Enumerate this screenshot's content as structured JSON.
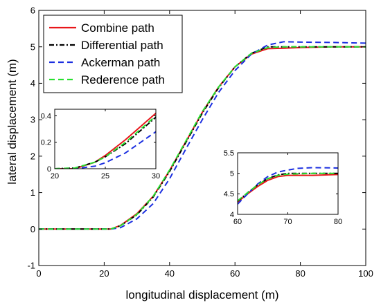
{
  "chart_data": [
    {
      "type": "line",
      "title": "",
      "xlabel": "longitudinal displacement (m)",
      "ylabel": "lateral displacement (m)",
      "xlim": [
        0,
        100
      ],
      "ylim": [
        -1,
        6
      ],
      "x_ticks": [
        "0",
        "20",
        "40",
        "60",
        "80",
        "100"
      ],
      "y_ticks": [
        "-1",
        "0",
        "1",
        "2",
        "3",
        "4",
        "5",
        "6"
      ],
      "grid": false,
      "legend_position": "top-left",
      "series": [
        {
          "name": "Combine path",
          "color": "#e8161a",
          "dash": "solid",
          "points": [
            [
              0,
              0
            ],
            [
              10,
              0
            ],
            [
              20,
              0
            ],
            [
              22,
              0
            ],
            [
              25,
              0.1
            ],
            [
              30,
              0.42
            ],
            [
              35,
              0.9
            ],
            [
              40,
              1.6
            ],
            [
              45,
              2.4
            ],
            [
              50,
              3.2
            ],
            [
              55,
              3.9
            ],
            [
              60,
              4.45
            ],
            [
              65,
              4.8
            ],
            [
              70,
              4.95
            ],
            [
              75,
              4.96
            ],
            [
              80,
              4.98
            ],
            [
              90,
              5.0
            ],
            [
              100,
              5.0
            ]
          ]
        },
        {
          "name": "Differential path",
          "color": "#000000",
          "dash": "dashdot",
          "points": [
            [
              0,
              0
            ],
            [
              10,
              0
            ],
            [
              20,
              0
            ],
            [
              22,
              0
            ],
            [
              25,
              0.09
            ],
            [
              30,
              0.39
            ],
            [
              35,
              0.88
            ],
            [
              40,
              1.58
            ],
            [
              45,
              2.38
            ],
            [
              50,
              3.18
            ],
            [
              55,
              3.88
            ],
            [
              60,
              4.45
            ],
            [
              65,
              4.82
            ],
            [
              70,
              5.0
            ],
            [
              75,
              5.0
            ],
            [
              80,
              5.0
            ],
            [
              90,
              5.0
            ],
            [
              100,
              5.0
            ]
          ]
        },
        {
          "name": "Ackerman path",
          "color": "#1a2ee0",
          "dash": "dashed",
          "points": [
            [
              0,
              0
            ],
            [
              10,
              0
            ],
            [
              20,
              0
            ],
            [
              22,
              0
            ],
            [
              25,
              0.04
            ],
            [
              30,
              0.28
            ],
            [
              35,
              0.7
            ],
            [
              40,
              1.38
            ],
            [
              45,
              2.2
            ],
            [
              50,
              3.0
            ],
            [
              55,
              3.75
            ],
            [
              60,
              4.35
            ],
            [
              65,
              4.8
            ],
            [
              70,
              5.05
            ],
            [
              75,
              5.14
            ],
            [
              80,
              5.13
            ],
            [
              90,
              5.12
            ],
            [
              100,
              5.1
            ]
          ]
        },
        {
          "name": "Rederence path",
          "color": "#27e02f",
          "dash": "dashed",
          "points": [
            [
              0,
              0
            ],
            [
              10,
              0
            ],
            [
              20,
              0
            ],
            [
              22,
              0
            ],
            [
              25,
              0.09
            ],
            [
              30,
              0.4
            ],
            [
              35,
              0.9
            ],
            [
              40,
              1.62
            ],
            [
              45,
              2.42
            ],
            [
              50,
              3.22
            ],
            [
              55,
              3.9
            ],
            [
              60,
              4.45
            ],
            [
              65,
              4.82
            ],
            [
              70,
              4.98
            ],
            [
              75,
              5.0
            ],
            [
              80,
              5.0
            ],
            [
              90,
              5.0
            ],
            [
              100,
              5.0
            ]
          ]
        }
      ]
    },
    {
      "type": "line",
      "title": "",
      "xlim": [
        20,
        30
      ],
      "ylim": [
        0,
        0.45
      ],
      "x_ticks": [
        "20",
        "25",
        "30"
      ],
      "y_ticks": [
        "0",
        "0.2",
        "0.4"
      ],
      "series": [
        {
          "name": "Combine path",
          "points": [
            [
              20,
              0
            ],
            [
              22,
              0
            ],
            [
              24,
              0.05
            ],
            [
              25,
              0.1
            ],
            [
              27,
              0.22
            ],
            [
              30,
              0.42
            ]
          ]
        },
        {
          "name": "Differential path",
          "points": [
            [
              20,
              0
            ],
            [
              22,
              0.005
            ],
            [
              24,
              0.05
            ],
            [
              25,
              0.09
            ],
            [
              27,
              0.19
            ],
            [
              30,
              0.39
            ]
          ]
        },
        {
          "name": "Ackerman path",
          "points": [
            [
              20,
              0
            ],
            [
              22,
              0
            ],
            [
              24,
              0.02
            ],
            [
              25,
              0.045
            ],
            [
              27,
              0.12
            ],
            [
              30,
              0.28
            ]
          ]
        },
        {
          "name": "Rederence path",
          "points": [
            [
              20,
              0
            ],
            [
              22,
              0.005
            ],
            [
              24,
              0.05
            ],
            [
              25,
              0.09
            ],
            [
              27,
              0.2
            ],
            [
              30,
              0.4
            ]
          ]
        }
      ]
    },
    {
      "type": "line",
      "title": "",
      "xlim": [
        60,
        80
      ],
      "ylim": [
        4,
        5.5
      ],
      "x_ticks": [
        "60",
        "70",
        "80"
      ],
      "y_ticks": [
        "4",
        "4.5",
        "5",
        "5.5"
      ],
      "series": [
        {
          "name": "Combine path",
          "points": [
            [
              60,
              4.3
            ],
            [
              62,
              4.5
            ],
            [
              64,
              4.68
            ],
            [
              66,
              4.83
            ],
            [
              68,
              4.92
            ],
            [
              70,
              4.95
            ],
            [
              72,
              4.95
            ],
            [
              75,
              4.95
            ],
            [
              80,
              4.97
            ]
          ]
        },
        {
          "name": "Differential path",
          "points": [
            [
              60,
              4.32
            ],
            [
              62,
              4.53
            ],
            [
              64,
              4.72
            ],
            [
              66,
              4.87
            ],
            [
              68,
              4.96
            ],
            [
              70,
              5.0
            ],
            [
              75,
              5.0
            ],
            [
              80,
              5.0
            ]
          ]
        },
        {
          "name": "Ackerman path",
          "points": [
            [
              60,
              4.25
            ],
            [
              62,
              4.5
            ],
            [
              64,
              4.74
            ],
            [
              66,
              4.92
            ],
            [
              68,
              5.03
            ],
            [
              70,
              5.08
            ],
            [
              72,
              5.12
            ],
            [
              75,
              5.14
            ],
            [
              80,
              5.13
            ]
          ]
        },
        {
          "name": "Rederence path",
          "points": [
            [
              60,
              4.33
            ],
            [
              62,
              4.53
            ],
            [
              64,
              4.72
            ],
            [
              66,
              4.87
            ],
            [
              68,
              4.95
            ],
            [
              70,
              4.98
            ],
            [
              75,
              5.0
            ],
            [
              80,
              5.0
            ]
          ]
        }
      ]
    }
  ]
}
